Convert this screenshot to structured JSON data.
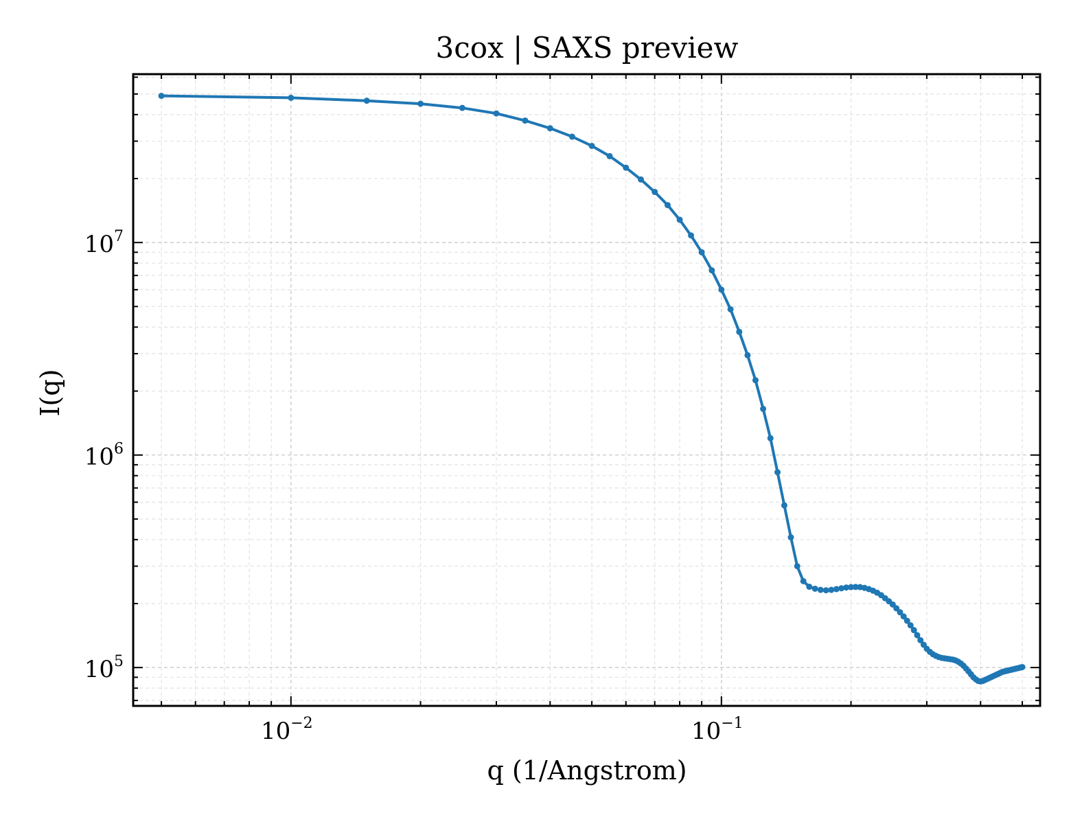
{
  "chart_data": {
    "type": "line",
    "title": "3cox | SAXS preview",
    "xlabel": "q (1/Angstrom)",
    "ylabel": "I(q)",
    "xscale": "log",
    "yscale": "log",
    "xlim": [
      0.0043,
      0.55
    ],
    "ylim": [
      66000,
      62000000
    ],
    "grid": true,
    "legend": "none",
    "x_ticks": [
      {
        "base": "10",
        "exp": "−2",
        "value": 0.01
      },
      {
        "base": "10",
        "exp": "−1",
        "value": 0.1
      }
    ],
    "y_ticks": [
      {
        "base": "10",
        "exp": "5",
        "value": 100000
      },
      {
        "base": "10",
        "exp": "6",
        "value": 1000000
      },
      {
        "base": "10",
        "exp": "7",
        "value": 10000000
      }
    ],
    "line_color": "#1f77b4",
    "series": [
      {
        "x": [
          0.005,
          0.01,
          0.015,
          0.02,
          0.025,
          0.03,
          0.035,
          0.04,
          0.045,
          0.05,
          0.055,
          0.06,
          0.065,
          0.07,
          0.075,
          0.08,
          0.085,
          0.09,
          0.095,
          0.1,
          0.105,
          0.11,
          0.115,
          0.12,
          0.125,
          0.13,
          0.135,
          0.14,
          0.145,
          0.15,
          0.155,
          0.16,
          0.165,
          0.17,
          0.175,
          0.18,
          0.185,
          0.19,
          0.195,
          0.2,
          0.205,
          0.21,
          0.215,
          0.22,
          0.225,
          0.23,
          0.235,
          0.24,
          0.245,
          0.25,
          0.255,
          0.26,
          0.265,
          0.27,
          0.275,
          0.28,
          0.285,
          0.29,
          0.295,
          0.3,
          0.305,
          0.31,
          0.315,
          0.32,
          0.325,
          0.33,
          0.335,
          0.34,
          0.345,
          0.35,
          0.355,
          0.36,
          0.365,
          0.37,
          0.375,
          0.38,
          0.385,
          0.39,
          0.395,
          0.4,
          0.405,
          0.41,
          0.415,
          0.42,
          0.425,
          0.43,
          0.435,
          0.44,
          0.445,
          0.45,
          0.455,
          0.46,
          0.465,
          0.47,
          0.475,
          0.48,
          0.485,
          0.49,
          0.495,
          0.5
        ],
        "y": [
          49000000,
          48000000,
          46500000,
          45000000,
          43000000,
          40500000,
          37500000,
          34500000,
          31500000,
          28500000,
          25500000,
          22500000,
          19800000,
          17300000,
          15000000,
          12800000,
          10800000,
          9000000,
          7400000,
          6000000,
          4850000,
          3800000,
          2950000,
          2250000,
          1650000,
          1200000,
          830000,
          580000,
          410000,
          300000,
          255000,
          240000,
          235000,
          232000,
          231000,
          232000,
          234000,
          236000,
          238000,
          239000,
          239500,
          239000,
          237000,
          234000,
          230000,
          225000,
          219000,
          212000,
          205000,
          198000,
          190000,
          182000,
          174000,
          166000,
          158000,
          150000,
          142000,
          134500,
          128000,
          122500,
          118500,
          115500,
          113500,
          112000,
          111000,
          110500,
          110000,
          109500,
          109000,
          108000,
          106500,
          104500,
          102000,
          99000,
          96000,
          93000,
          90000,
          88000,
          86500,
          86000,
          86500,
          87500,
          88500,
          89500,
          90500,
          91500,
          92500,
          93500,
          94500,
          95500,
          96000,
          96500,
          97000,
          97500,
          98000,
          98500,
          99000,
          99500,
          100000,
          100500
        ]
      }
    ]
  }
}
